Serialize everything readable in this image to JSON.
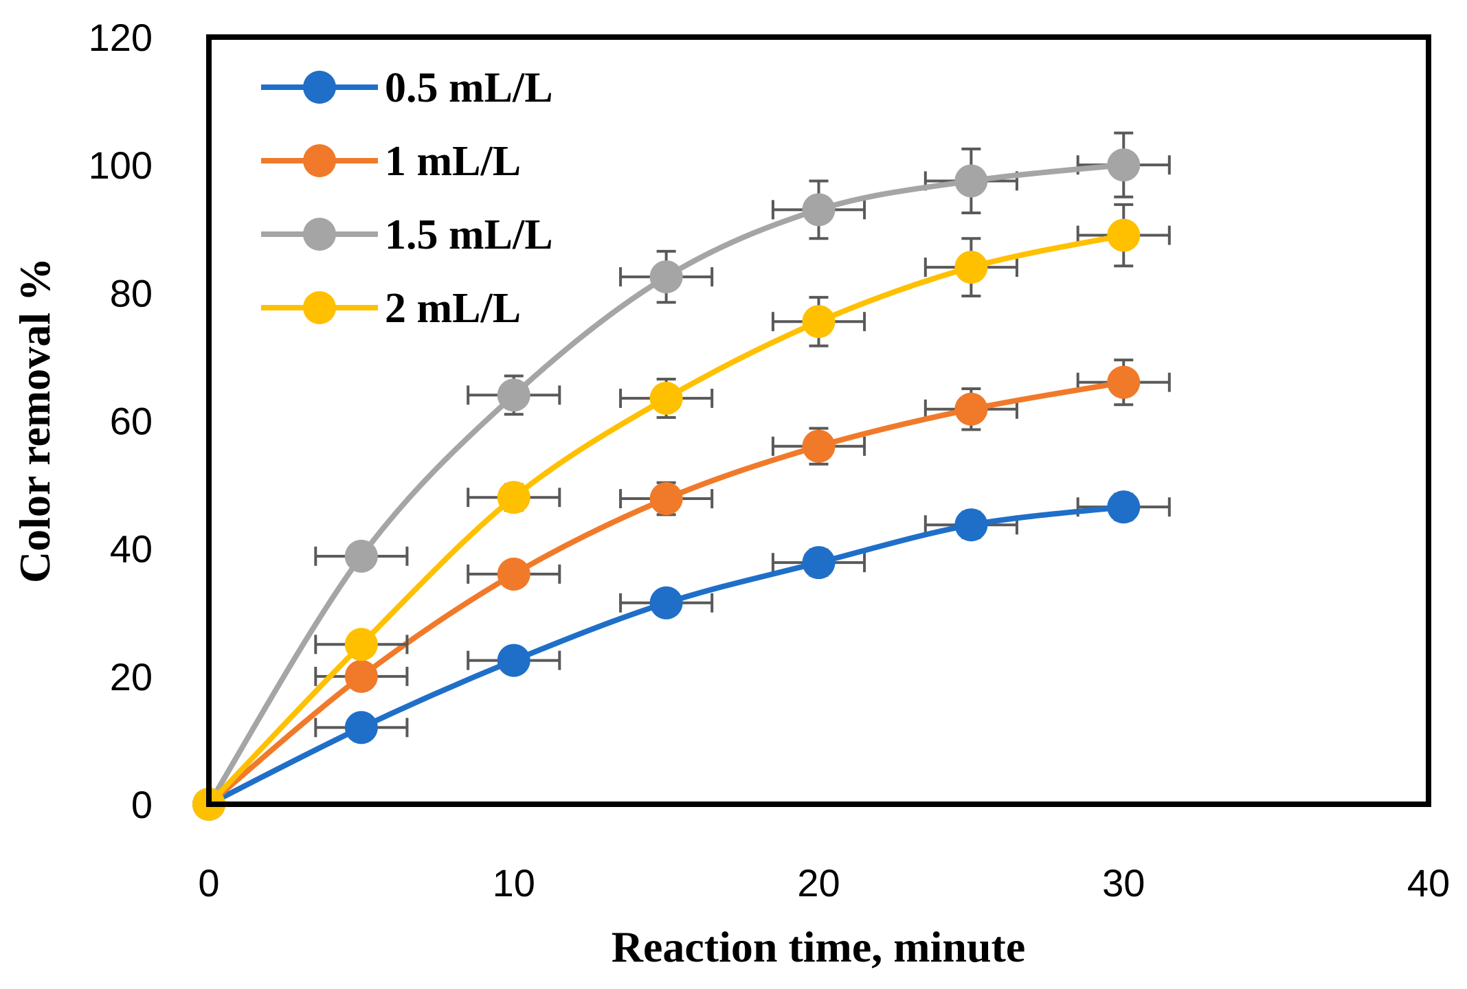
{
  "chart_data": {
    "type": "line",
    "xlabel": "Reaction time, minute",
    "ylabel": "Color removal %",
    "xlim": [
      0,
      40
    ],
    "ylim": [
      0,
      120
    ],
    "xticks": [
      0,
      10,
      20,
      30,
      40
    ],
    "yticks": [
      0,
      20,
      40,
      60,
      80,
      100,
      120
    ],
    "grid": false,
    "legend_position": "top-left",
    "x": [
      0,
      5,
      10,
      15,
      20,
      25,
      30
    ],
    "series": [
      {
        "name": "0.5 mL/L",
        "color": "#1f6fc9",
        "values": [
          0,
          12,
          22.5,
          31.5,
          37.8,
          43.7,
          46.5
        ],
        "error": [
          0,
          1.5,
          1.5,
          1.5,
          2,
          2,
          2
        ]
      },
      {
        "name": "1 mL/L",
        "color": "#f07a2a",
        "values": [
          0,
          20,
          36,
          47.8,
          56,
          61.8,
          66
        ],
        "error": [
          0,
          1.5,
          1.8,
          2.5,
          2.8,
          3.2,
          3.5
        ]
      },
      {
        "name": "1.5 mL/L",
        "color": "#a5a5a5",
        "values": [
          0,
          38.8,
          64,
          82.5,
          93,
          97.5,
          100
        ],
        "error": [
          0,
          1.5,
          3,
          4,
          4.5,
          5,
          5
        ]
      },
      {
        "name": "2 mL/L",
        "color": "#ffc000",
        "values": [
          0,
          25,
          48,
          63.5,
          75.5,
          84,
          89
        ],
        "error": [
          0,
          1.5,
          2,
          3,
          3.8,
          4.5,
          4.8
        ]
      }
    ]
  }
}
